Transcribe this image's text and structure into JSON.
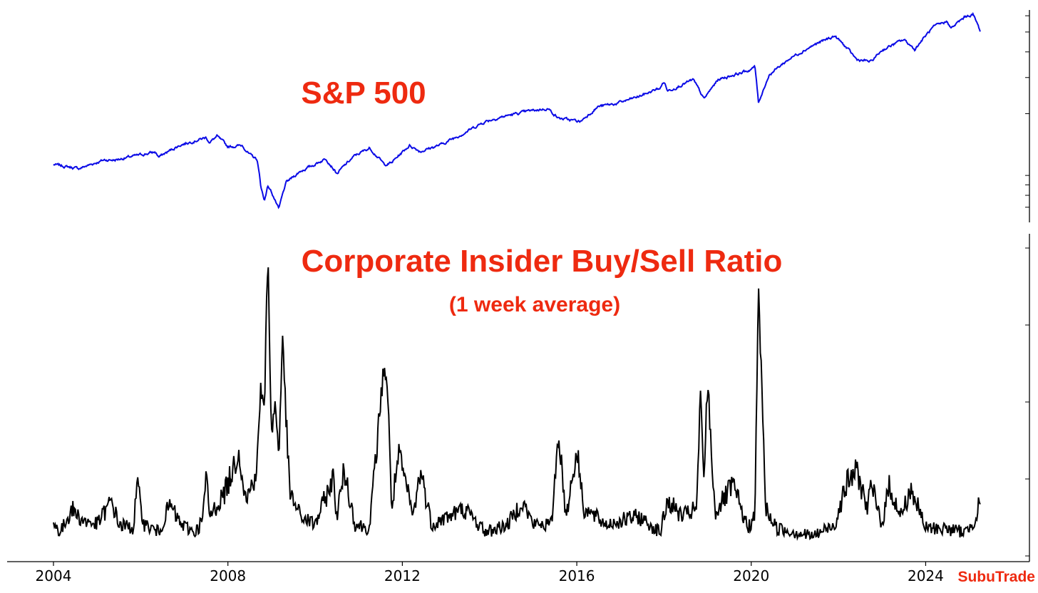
{
  "brand": "SubuTrade",
  "colors": {
    "annotation": "#ee2a10",
    "sp500_line": "#0a0ae6",
    "insider_line": "#000000"
  },
  "chart_data": [
    {
      "type": "line",
      "title": "S&P 500",
      "log_scale": true,
      "grid": false,
      "x_range": [
        "2004-01",
        "2025-05"
      ],
      "series": [
        {
          "values": [
            [
              "2004-01",
              1130
            ],
            [
              "2004-08",
              1080
            ],
            [
              "2005-03",
              1190
            ],
            [
              "2005-06",
              1190
            ],
            [
              "2005-12",
              1250
            ],
            [
              "2006-05",
              1300
            ],
            [
              "2006-06",
              1230
            ],
            [
              "2006-12",
              1410
            ],
            [
              "2007-07",
              1530
            ],
            [
              "2007-08",
              1450
            ],
            [
              "2007-10",
              1550
            ],
            [
              "2008-01",
              1380
            ],
            [
              "2008-05",
              1400
            ],
            [
              "2008-07",
              1260
            ],
            [
              "2008-09",
              1200
            ],
            [
              "2008-10",
              900
            ],
            [
              "2008-11",
              750
            ],
            [
              "2008-12",
              890
            ],
            [
              "2009-01",
              830
            ],
            [
              "2009-03",
              680
            ],
            [
              "2009-05",
              920
            ],
            [
              "2009-09",
              1050
            ],
            [
              "2009-12",
              1110
            ],
            [
              "2010-04",
              1210
            ],
            [
              "2010-07",
              1020
            ],
            [
              "2010-12",
              1250
            ],
            [
              "2011-04",
              1360
            ],
            [
              "2011-08",
              1130
            ],
            [
              "2011-10",
              1150
            ],
            [
              "2012-03",
              1400
            ],
            [
              "2012-06",
              1310
            ],
            [
              "2012-12",
              1420
            ],
            [
              "2013-06",
              1610
            ],
            [
              "2013-12",
              1840
            ],
            [
              "2014-06",
              1960
            ],
            [
              "2014-12",
              2060
            ],
            [
              "2015-05",
              2120
            ],
            [
              "2015-08",
              1900
            ],
            [
              "2016-02",
              1830
            ],
            [
              "2016-07",
              2170
            ],
            [
              "2016-12",
              2240
            ],
            [
              "2017-06",
              2420
            ],
            [
              "2017-12",
              2670
            ],
            [
              "2018-01",
              2870
            ],
            [
              "2018-02",
              2580
            ],
            [
              "2018-09",
              2920
            ],
            [
              "2018-12",
              2350
            ],
            [
              "2019-04",
              2940
            ],
            [
              "2019-12",
              3230
            ],
            [
              "2020-02",
              3380
            ],
            [
              "2020-03",
              2240
            ],
            [
              "2020-06",
              3100
            ],
            [
              "2020-12",
              3750
            ],
            [
              "2021-06",
              4300
            ],
            [
              "2021-12",
              4780
            ],
            [
              "2022-06",
              3670
            ],
            [
              "2022-10",
              3580
            ],
            [
              "2023-01",
              4080
            ],
            [
              "2023-07",
              4590
            ],
            [
              "2023-10",
              4110
            ],
            [
              "2024-03",
              5250
            ],
            [
              "2024-07",
              5650
            ],
            [
              "2024-08",
              5200
            ],
            [
              "2024-12",
              5950
            ],
            [
              "2025-02",
              6100
            ],
            [
              "2025-04",
              5060
            ]
          ]
        }
      ]
    },
    {
      "type": "line",
      "title": "Corporate Insider Buy/Sell Ratio",
      "subtitle": "(1 week average)",
      "grid": false,
      "x_ticks": [
        "2004",
        "2008",
        "2012",
        "2016",
        "2020",
        "2024"
      ],
      "y_range": [
        0,
        4
      ],
      "series": [
        {
          "values": [
            [
              "2004-01",
              0.4
            ],
            [
              "2004-03",
              0.3
            ],
            [
              "2004-06",
              0.6
            ],
            [
              "2004-09",
              0.45
            ],
            [
              "2005-01",
              0.4
            ],
            [
              "2005-05",
              0.7
            ],
            [
              "2005-07",
              0.4
            ],
            [
              "2005-11",
              0.35
            ],
            [
              "2005-12",
              0.9
            ],
            [
              "2006-02",
              0.4
            ],
            [
              "2006-06",
              0.3
            ],
            [
              "2006-09",
              0.65
            ],
            [
              "2006-12",
              0.4
            ],
            [
              "2007-04",
              0.3
            ],
            [
              "2007-06",
              0.45
            ],
            [
              "2007-07",
              1.0
            ],
            [
              "2007-08",
              0.5
            ],
            [
              "2007-12",
              0.8
            ],
            [
              "2008-02",
              1.05
            ],
            [
              "2008-04",
              1.35
            ],
            [
              "2008-06",
              0.7
            ],
            [
              "2008-09",
              1.1
            ],
            [
              "2008-10",
              2.2
            ],
            [
              "2008-11",
              1.8
            ],
            [
              "2008-12",
              4.0
            ],
            [
              "2009-01",
              1.5
            ],
            [
              "2009-02",
              2.0
            ],
            [
              "2009-03",
              1.3
            ],
            [
              "2009-04",
              2.8
            ],
            [
              "2009-06",
              0.8
            ],
            [
              "2009-09",
              0.5
            ],
            [
              "2010-01",
              0.4
            ],
            [
              "2010-06",
              1.0
            ],
            [
              "2010-07",
              0.5
            ],
            [
              "2010-09",
              1.1
            ],
            [
              "2010-12",
              0.4
            ],
            [
              "2011-04",
              0.35
            ],
            [
              "2011-08",
              2.5
            ],
            [
              "2011-09",
              2.1
            ],
            [
              "2011-10",
              0.6
            ],
            [
              "2011-12",
              1.3
            ],
            [
              "2012-04",
              0.5
            ],
            [
              "2012-06",
              1.1
            ],
            [
              "2012-09",
              0.4
            ],
            [
              "2013-06",
              0.6
            ],
            [
              "2013-12",
              0.3
            ],
            [
              "2014-06",
              0.4
            ],
            [
              "2014-10",
              0.7
            ],
            [
              "2015-01",
              0.4
            ],
            [
              "2015-06",
              0.4
            ],
            [
              "2015-08",
              1.6
            ],
            [
              "2015-10",
              0.5
            ],
            [
              "2016-01",
              1.35
            ],
            [
              "2016-03",
              0.6
            ],
            [
              "2016-09",
              0.4
            ],
            [
              "2017-06",
              0.5
            ],
            [
              "2017-12",
              0.3
            ],
            [
              "2018-02",
              0.7
            ],
            [
              "2018-06",
              0.5
            ],
            [
              "2018-10",
              0.6
            ],
            [
              "2018-11",
              2.05
            ],
            [
              "2018-12",
              1.0
            ],
            [
              "2019-01",
              2.25
            ],
            [
              "2019-03",
              0.55
            ],
            [
              "2019-08",
              0.9
            ],
            [
              "2019-12",
              0.35
            ],
            [
              "2020-02",
              0.5
            ],
            [
              "2020-03",
              3.45
            ],
            [
              "2020-05",
              0.6
            ],
            [
              "2020-08",
              0.35
            ],
            [
              "2021-06",
              0.25
            ],
            [
              "2021-12",
              0.4
            ],
            [
              "2022-03",
              0.9
            ],
            [
              "2022-06",
              1.1
            ],
            [
              "2022-09",
              0.6
            ],
            [
              "2022-10",
              0.9
            ],
            [
              "2023-01",
              0.4
            ],
            [
              "2023-03",
              0.9
            ],
            [
              "2023-06",
              0.5
            ],
            [
              "2023-09",
              0.85
            ],
            [
              "2024-01",
              0.35
            ],
            [
              "2024-06",
              0.35
            ],
            [
              "2024-12",
              0.3
            ],
            [
              "2025-03",
              0.5
            ],
            [
              "2025-04",
              0.75
            ]
          ]
        }
      ]
    }
  ]
}
